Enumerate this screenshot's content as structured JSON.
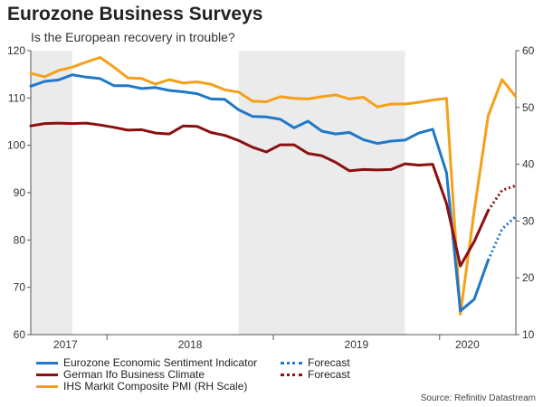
{
  "header": {
    "title": "Eurozone Business Surveys",
    "subtitle": "Is the European recovery in trouble?"
  },
  "source": "Source: Refinitiv Datastream",
  "chart_data": {
    "type": "line",
    "title": "Eurozone Business Surveys",
    "subtitle": "Is the European recovery in trouble?",
    "x_unit": "month index (0 = Jul 2017)",
    "x_range": [
      0,
      35
    ],
    "x_tick_labels": [
      {
        "label": "2017",
        "x": 2.5
      },
      {
        "label": "2018",
        "x": 11.5
      },
      {
        "label": "2019",
        "x": 23.5
      },
      {
        "label": "2020",
        "x": 31.5
      }
    ],
    "shaded_periods": [
      [
        0,
        3
      ],
      [
        15,
        27
      ]
    ],
    "left_axis": {
      "ylim": [
        60,
        120
      ],
      "ticks": [
        60,
        70,
        80,
        90,
        100,
        110,
        120
      ]
    },
    "right_axis": {
      "ylim": [
        10,
        60
      ],
      "ticks": [
        10,
        20,
        30,
        40,
        50,
        60
      ],
      "label": "RH Scale"
    },
    "series": [
      {
        "name": "Eurozone Economic Sentiment Indicator",
        "axis": "left",
        "color": "#1f78c8",
        "style": "solid",
        "x": [
          0,
          1,
          2,
          3,
          4,
          5,
          6,
          7,
          8,
          9,
          10,
          11,
          12,
          13,
          14,
          15,
          16,
          17,
          18,
          19,
          20,
          21,
          22,
          23,
          24,
          25,
          26,
          27,
          28,
          29,
          30,
          31,
          32,
          33
        ],
        "values": [
          112.5,
          113.5,
          113.8,
          114.9,
          114.4,
          114.1,
          112.6,
          112.6,
          112.0,
          112.2,
          111.6,
          111.3,
          110.9,
          109.8,
          109.7,
          107.5,
          106.1,
          106.0,
          105.5,
          103.7,
          105.1,
          103.0,
          102.4,
          102.7,
          101.2,
          100.4,
          100.9,
          101.1,
          102.6,
          103.4,
          94.2,
          65.0,
          67.5,
          75.7
        ],
        "forecast": {
          "name": "Forecast",
          "style": "dotted",
          "x": [
            33,
            34,
            35
          ],
          "values": [
            75.7,
            82.3,
            85.0
          ]
        }
      },
      {
        "name": "German Ifo Business Climate",
        "axis": "left",
        "color": "#8b1010",
        "style": "solid",
        "x": [
          0,
          1,
          2,
          3,
          4,
          5,
          6,
          7,
          8,
          9,
          10,
          11,
          12,
          13,
          14,
          15,
          16,
          17,
          18,
          19,
          20,
          21,
          22,
          23,
          24,
          25,
          26,
          27,
          28,
          29,
          30,
          31,
          32,
          33
        ],
        "values": [
          104.1,
          104.6,
          104.7,
          104.6,
          104.7,
          104.3,
          103.8,
          103.2,
          103.3,
          102.6,
          102.4,
          104.1,
          104.0,
          102.7,
          102.1,
          101.0,
          99.6,
          98.6,
          100.1,
          100.1,
          98.3,
          97.8,
          96.4,
          94.6,
          94.9,
          94.8,
          94.9,
          96.1,
          95.8,
          96.0,
          87.7,
          74.5,
          79.7,
          86.2
        ],
        "forecast": {
          "name": "Forecast",
          "style": "dotted",
          "x": [
            33,
            34,
            35
          ],
          "values": [
            86.2,
            90.5,
            91.5
          ]
        }
      },
      {
        "name": "IHS Markit Composite PMI (RH Scale)",
        "axis": "right",
        "color": "#f5a01a",
        "style": "solid",
        "x": [
          0,
          1,
          2,
          3,
          4,
          5,
          6,
          7,
          8,
          9,
          10,
          11,
          12,
          13,
          14,
          15,
          16,
          17,
          18,
          19,
          20,
          21,
          22,
          23,
          24,
          25,
          26,
          27,
          28,
          29,
          30,
          31,
          32,
          33,
          34,
          35
        ],
        "values": [
          56.0,
          55.4,
          56.5,
          57.1,
          58.0,
          58.8,
          57.1,
          55.2,
          55.1,
          54.1,
          54.9,
          54.3,
          54.5,
          54.1,
          53.1,
          52.7,
          51.1,
          51.0,
          51.9,
          51.6,
          51.5,
          51.9,
          52.2,
          51.5,
          51.8,
          50.1,
          50.6,
          50.6,
          50.9,
          51.3,
          51.6,
          13.6,
          31.9,
          48.5,
          54.9,
          51.9
        ]
      }
    ],
    "legend": {
      "placement": "bottom",
      "entries": [
        {
          "label": "Eurozone Economic Sentiment Indicator",
          "color": "#1f78c8",
          "style": "solid"
        },
        {
          "label": "Forecast",
          "color": "#1f78c8",
          "style": "dotted"
        },
        {
          "label": "German Ifo Business Climate",
          "color": "#8b1010",
          "style": "solid"
        },
        {
          "label": "Forecast",
          "color": "#8b1010",
          "style": "dotted"
        },
        {
          "label": "IHS Markit Composite PMI (RH Scale)",
          "color": "#f5a01a",
          "style": "solid"
        }
      ]
    }
  }
}
